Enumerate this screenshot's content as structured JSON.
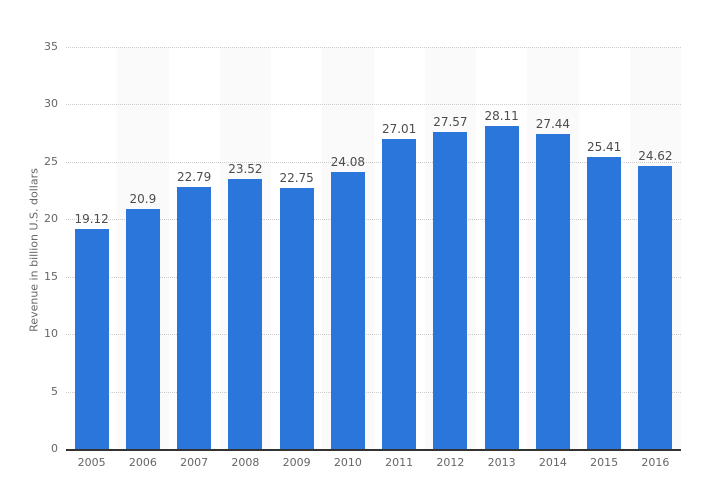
{
  "chart_data": {
    "type": "bar",
    "title": "",
    "xlabel": "",
    "ylabel": "Revenue in billion U.S. dollars",
    "categories": [
      "2005",
      "2006",
      "2007",
      "2008",
      "2009",
      "2010",
      "2011",
      "2012",
      "2013",
      "2014",
      "2015",
      "2016"
    ],
    "values": [
      19.12,
      20.9,
      22.79,
      23.52,
      22.75,
      24.08,
      27.01,
      27.57,
      28.11,
      27.44,
      25.41,
      24.62
    ],
    "value_labels": [
      "19.12",
      "20.9",
      "22.79",
      "23.52",
      "22.75",
      "24.08",
      "27.01",
      "27.57",
      "28.11",
      "27.44",
      "25.41",
      "24.62"
    ],
    "ylim": [
      0,
      35
    ],
    "yticks": [
      0,
      5,
      10,
      15,
      20,
      25,
      30,
      35
    ],
    "grid": "horizontal-dotted",
    "legend": "none",
    "colors": {
      "bar": "#2b76db",
      "band_alt": "#fafafa",
      "gridline": "#cccccc",
      "axis_line": "#333333",
      "tick_text": "#666666",
      "value_text": "#4d4d4d"
    }
  }
}
